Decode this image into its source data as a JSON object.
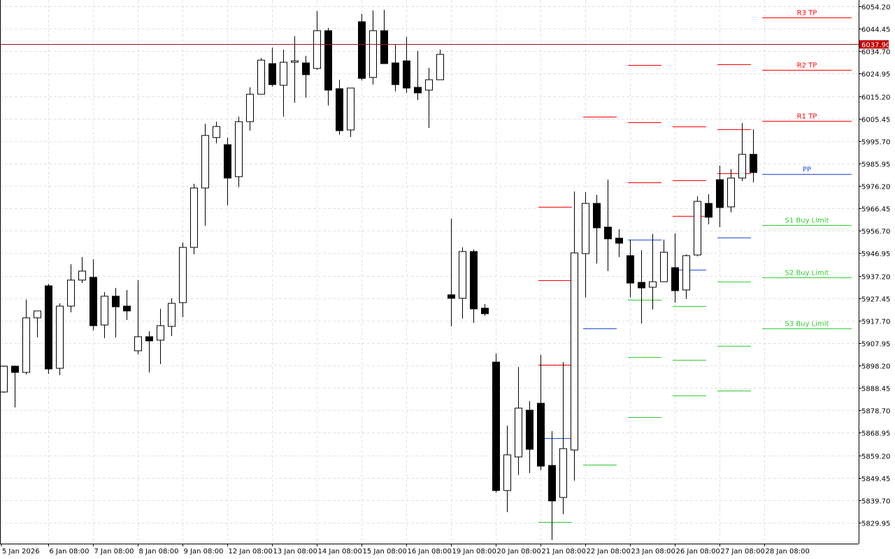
{
  "chart_data": {
    "type": "candlestick",
    "grid": true,
    "ylim": [
      5829.95,
      6054.2
    ],
    "y_ticks": [
      "6054.20",
      "6044.45",
      "6034.70",
      "6024.95",
      "6015.20",
      "6005.45",
      "5995.70",
      "5985.95",
      "5976.20",
      "5966.45",
      "5956.70",
      "5946.95",
      "5937.20",
      "5927.45",
      "5917.70",
      "5907.95",
      "5898.20",
      "5888.45",
      "5878.70",
      "5868.95",
      "5859.20",
      "5849.45",
      "5839.70",
      "5829.95"
    ],
    "x_ticks": [
      "5 Jan 2026",
      "6 Jan 08:00",
      "7 Jan 08:00",
      "8 Jan 08:00",
      "9 Jan 08:00",
      "12 Jan 08:00",
      "13 Jan 08:00",
      "14 Jan 08:00",
      "15 Jan 08:00",
      "16 Jan 08:00",
      "19 Jan 08:00",
      "20 Jan 08:00",
      "21 Jan 08:00",
      "22 Jan 08:00",
      "23 Jan 08:00",
      "26 Jan 08:00",
      "27 Jan 08:00",
      "28 Jan 08:00"
    ],
    "candles_ohlc": [
      [
        5886.7,
        5898.2,
        5886.4,
        5897.9
      ],
      [
        5897.9,
        5898.2,
        5880.0,
        5895.2
      ],
      [
        5895.2,
        5926.8,
        5894.3,
        5918.9
      ],
      [
        5918.9,
        5921.9,
        5910.4,
        5921.9
      ],
      [
        5932.8,
        5933.7,
        5894.6,
        5896.7
      ],
      [
        5897.0,
        5925.2,
        5894.0,
        5924.0
      ],
      [
        5924.0,
        5942.2,
        5921.3,
        5935.3
      ],
      [
        5935.3,
        5945.3,
        5934.0,
        5939.2
      ],
      [
        5936.5,
        5944.4,
        5913.4,
        5915.5
      ],
      [
        5915.8,
        5930.1,
        5910.1,
        5928.3
      ],
      [
        5928.3,
        5931.9,
        5910.4,
        5923.7
      ],
      [
        5924.0,
        5931.0,
        5918.0,
        5921.9
      ],
      [
        5904.6,
        5935.3,
        5903.1,
        5910.7
      ],
      [
        5910.7,
        5913.1,
        5895.2,
        5908.9
      ],
      [
        5909.2,
        5922.8,
        5898.8,
        5915.5
      ],
      [
        5915.2,
        5927.4,
        5911.0,
        5925.2
      ],
      [
        5925.5,
        5951.6,
        5919.2,
        5949.5
      ],
      [
        5949.5,
        5977.1,
        5946.5,
        5975.3
      ],
      [
        5975.3,
        6003.2,
        5958.9,
        5998.1
      ],
      [
        5997.2,
        6004.1,
        5994.7,
        6002.0
      ],
      [
        5994.1,
        5997.2,
        5967.7,
        5979.6
      ],
      [
        5980.2,
        6006.3,
        5975.6,
        6004.1
      ],
      [
        6004.1,
        6019.0,
        6000.2,
        6016.0
      ],
      [
        6016.0,
        6031.7,
        6016.0,
        6030.8
      ],
      [
        6029.3,
        6036.3,
        6019.3,
        6020.2
      ],
      [
        6019.9,
        6035.4,
        6006.3,
        6029.9
      ],
      [
        6029.9,
        6041.2,
        6012.3,
        6030.5
      ],
      [
        6029.6,
        6032.7,
        6014.5,
        6024.5
      ],
      [
        6027.2,
        6052.1,
        6026.6,
        6043.6
      ],
      [
        6043.6,
        6044.8,
        6011.1,
        6017.8
      ],
      [
        6018.4,
        6022.3,
        5998.4,
        6000.2
      ],
      [
        6000.5,
        6018.7,
        5997.5,
        6018.7
      ],
      [
        6047.5,
        6050.9,
        6022.0,
        6022.9
      ],
      [
        6023.3,
        6052.4,
        6020.2,
        6043.6
      ],
      [
        6043.6,
        6052.7,
        6029.3,
        6029.3
      ],
      [
        6029.6,
        6037.5,
        6017.2,
        6020.2
      ],
      [
        6030.5,
        6040.9,
        6016.6,
        6018.7
      ],
      [
        6019.0,
        6034.8,
        6013.5,
        6016.6
      ],
      [
        6017.8,
        6027.5,
        6001.4,
        6022.3
      ],
      [
        6022.3,
        6035.4,
        6022.3,
        6033.3
      ],
      [
        5928.9,
        5962.0,
        5915.2,
        5927.4
      ],
      [
        5927.4,
        5949.5,
        5918.6,
        5947.7
      ],
      [
        5947.7,
        5948.6,
        5916.7,
        5922.8
      ],
      [
        5923.1,
        5924.9,
        5919.8,
        5920.7
      ],
      [
        5899.7,
        5903.4,
        5843.0,
        5843.9
      ],
      [
        5843.9,
        5872.1,
        5834.5,
        5859.4
      ],
      [
        5858.5,
        5897.6,
        5850.6,
        5879.7
      ],
      [
        5878.8,
        5882.8,
        5851.5,
        5861.8
      ],
      [
        5881.8,
        5902.8,
        5852.7,
        5854.5
      ],
      [
        5854.8,
        5869.7,
        5822.4,
        5839.4
      ],
      [
        5840.9,
        5899.7,
        5833.6,
        5862.1
      ],
      [
        5861.5,
        5973.8,
        5848.2,
        5947.1
      ],
      [
        5946.8,
        5973.5,
        5927.7,
        5968.6
      ],
      [
        5968.6,
        5972.3,
        5942.5,
        5958.0
      ],
      [
        5958.3,
        5978.9,
        5939.2,
        5953.2
      ],
      [
        5953.5,
        5957.4,
        5945.3,
        5951.3
      ],
      [
        5945.9,
        5952.9,
        5927.7,
        5934.0
      ],
      [
        5934.3,
        5948.3,
        5916.4,
        5931.9
      ],
      [
        5932.2,
        5955.3,
        5922.5,
        5934.6
      ],
      [
        5934.6,
        5952.9,
        5934.6,
        5947.4
      ],
      [
        5940.7,
        5955.6,
        5925.5,
        5930.7
      ],
      [
        5931.0,
        5946.5,
        5927.1,
        5945.9
      ],
      [
        5946.2,
        5971.7,
        5945.6,
        5969.5
      ],
      [
        5968.6,
        5972.6,
        5959.5,
        5962.6
      ],
      [
        5978.9,
        5985.0,
        5958.3,
        5966.8
      ],
      [
        5967.1,
        5983.5,
        5964.7,
        5979.6
      ],
      [
        5979.6,
        6003.5,
        5978.3,
        5989.9
      ],
      [
        5989.9,
        6000.8,
        5977.7,
        5982.0
      ]
    ],
    "current_price": {
      "label": "6037.90",
      "value": 6037.9,
      "color": "#c00000"
    },
    "colors": {
      "resistance": "#ff0000",
      "pivot": "#1e50d0",
      "support": "#33cc33",
      "bull_body": "#ffffff",
      "bear_body": "#000000",
      "grid": "#e2e2e2"
    },
    "pivot_levels": [
      {
        "day": "21 Jan 08:00",
        "levels": [
          {
            "type": "resistance",
            "value": 5967.1
          },
          {
            "type": "resistance",
            "value": 5935.3
          },
          {
            "type": "resistance",
            "value": 5898.5
          },
          {
            "type": "pivot",
            "value": 5866.7
          },
          {
            "type": "support",
            "value": 5830.3
          }
        ]
      },
      {
        "day": "22 Jan 08:00",
        "levels": [
          {
            "type": "resistance",
            "value": 6006.3
          },
          {
            "type": "pivot",
            "value": 5914.3
          },
          {
            "type": "support",
            "value": 5855.1
          }
        ]
      },
      {
        "day": "23 Jan 08:00",
        "levels": [
          {
            "type": "resistance",
            "value": 6028.7
          },
          {
            "type": "resistance",
            "value": 6003.8
          },
          {
            "type": "resistance",
            "value": 5977.7
          },
          {
            "type": "pivot",
            "value": 5952.9
          },
          {
            "type": "support",
            "value": 5926.8
          },
          {
            "type": "support",
            "value": 5901.9
          },
          {
            "type": "support",
            "value": 5875.8
          }
        ]
      },
      {
        "day": "26 Jan 08:00",
        "levels": [
          {
            "type": "resistance",
            "value": 6002.0
          },
          {
            "type": "resistance",
            "value": 5978.6
          },
          {
            "type": "resistance",
            "value": 5963.2
          },
          {
            "type": "pivot",
            "value": 5939.8
          },
          {
            "type": "support",
            "value": 5924.0
          },
          {
            "type": "support",
            "value": 5900.7
          },
          {
            "type": "support",
            "value": 5885.2
          }
        ]
      },
      {
        "day": "27 Jan 08:00",
        "levels": [
          {
            "type": "resistance",
            "value": 6029.0
          },
          {
            "type": "resistance",
            "value": 6000.8
          },
          {
            "type": "resistance",
            "value": 5981.7
          },
          {
            "type": "pivot",
            "value": 5953.8
          },
          {
            "type": "support",
            "value": 5934.6
          },
          {
            "type": "support",
            "value": 5906.7
          },
          {
            "type": "support",
            "value": 5887.3
          }
        ]
      },
      {
        "day": "28 Jan 08:00",
        "levels": [
          {
            "type": "resistance",
            "value": 6049.3,
            "label": "R3 TP"
          },
          {
            "type": "resistance",
            "value": 6026.6,
            "label": "R2 TP"
          },
          {
            "type": "resistance",
            "value": 6004.4,
            "label": "R1 TP"
          },
          {
            "type": "pivot",
            "value": 5981.4,
            "label": "PP"
          },
          {
            "type": "support",
            "value": 5959.2,
            "label": "S1 Buy Limit"
          },
          {
            "type": "support",
            "value": 5936.5,
            "label": "S2 Buy Limit"
          },
          {
            "type": "support",
            "value": 5914.3,
            "label": "S3 Buy Limit"
          }
        ]
      }
    ]
  }
}
